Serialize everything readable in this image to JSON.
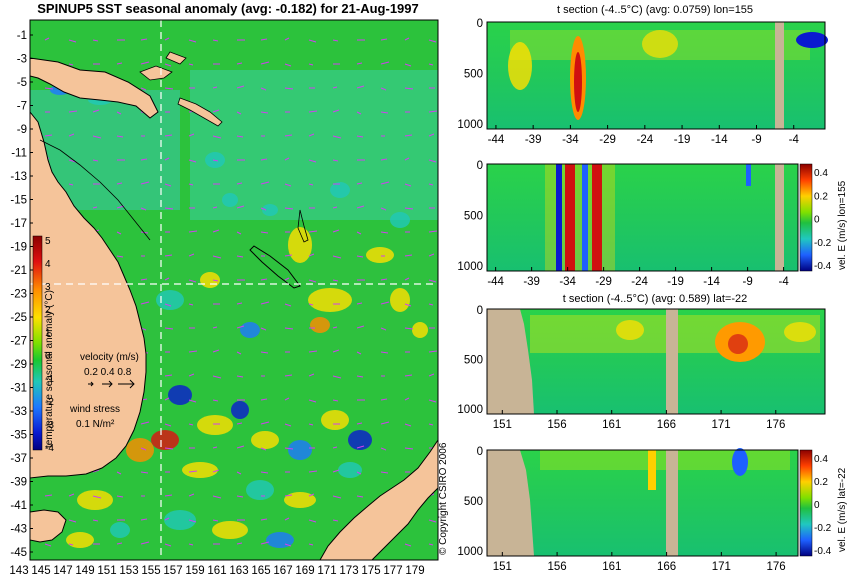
{
  "main_map": {
    "title": "SPINUP5 SST seasonal anomaly (avg: -0.182) for 21-Aug-1997",
    "lat_ticks": [
      "-1",
      "-3",
      "-5",
      "-7",
      "-9",
      "-11",
      "-13",
      "-15",
      "-17",
      "-19",
      "-21",
      "-23",
      "-25",
      "-27",
      "-29",
      "-31",
      "-33",
      "-35",
      "-37",
      "-39",
      "-41",
      "-43",
      "-45"
    ],
    "lon_ticks": [
      "143",
      "145",
      "147",
      "149",
      "151",
      "153",
      "155",
      "157",
      "159",
      "161",
      "163",
      "165",
      "167",
      "169",
      "171",
      "173",
      "175",
      "177",
      "179"
    ],
    "colorbar": {
      "label": "temperature seasonal anomaly (°C)",
      "ticks": [
        "5",
        "4",
        "3",
        "2",
        "1",
        "0",
        "-1",
        "-2",
        "-3",
        "-4"
      ]
    },
    "velocity_legend": {
      "label": "velocity (m/s)",
      "values": "0.2 0.4 0.8"
    },
    "wind_legend": {
      "label": "wind stress",
      "value": "0.1 N/m²"
    },
    "section_lines": {
      "lon": 155,
      "lat": -22
    },
    "copyright": "© Copyright CSIRO 2006"
  },
  "panels": [
    {
      "id": "t-section-lon",
      "title": "t section (-4..5°C) (avg: 0.0759) lon=155",
      "x_ticks": [
        "-44",
        "-39",
        "-34",
        "-29",
        "-24",
        "-19",
        "-14",
        "-9",
        "-4"
      ],
      "y_ticks": [
        "0",
        "500",
        "1000"
      ]
    },
    {
      "id": "vel-section-lon",
      "title": "",
      "x_ticks": [
        "-44",
        "-39",
        "-34",
        "-29",
        "-24",
        "-19",
        "-14",
        "-9",
        "-4"
      ],
      "y_ticks": [
        "0",
        "500",
        "1000"
      ],
      "colorbar": {
        "label": "vel. E (m/s) lon=155",
        "ticks": [
          "0.4",
          "0.2",
          "0",
          "-0.2",
          "-0.4"
        ]
      }
    },
    {
      "id": "t-section-lat",
      "title": "t section (-4..5°C) (avg: 0.589) lat=-22",
      "x_ticks": [
        "151",
        "156",
        "161",
        "166",
        "171",
        "176"
      ],
      "y_ticks": [
        "0",
        "500",
        "1000"
      ]
    },
    {
      "id": "vel-section-lat",
      "title": "",
      "x_ticks": [
        "151",
        "156",
        "161",
        "166",
        "171",
        "176"
      ],
      "y_ticks": [
        "0",
        "500",
        "1000"
      ],
      "colorbar": {
        "label": "vel. E (m/s) lat=-22",
        "ticks": [
          "0.4",
          "0.2",
          "0",
          "-0.2",
          "-0.4"
        ]
      }
    }
  ],
  "colors": {
    "land": "#f5c49a",
    "section_land": "#c8b496",
    "ocean_base": "#2cc23c",
    "background": "#ffffff"
  }
}
